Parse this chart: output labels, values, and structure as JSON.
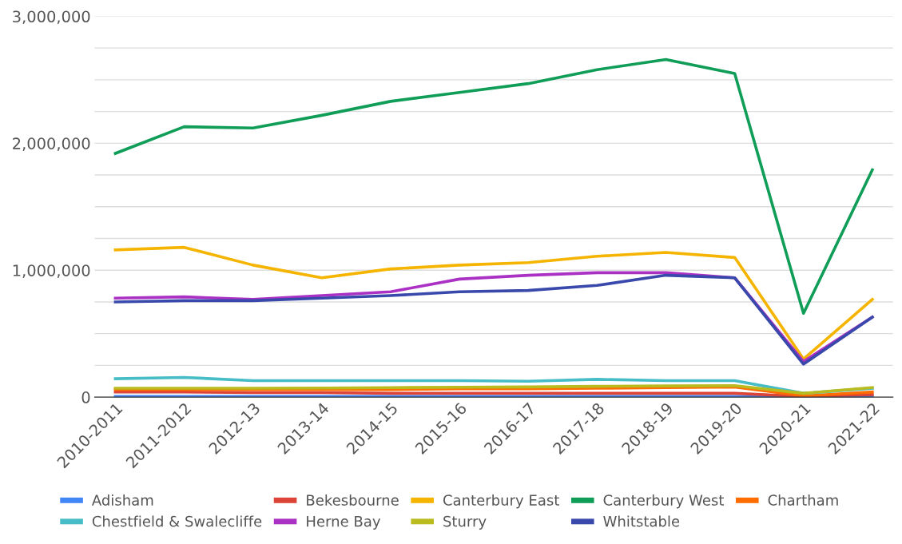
{
  "chart_data": {
    "type": "line",
    "categories": [
      "2010-2011",
      "2011-2012",
      "2012-13",
      "2013-14",
      "2014-15",
      "2015-16",
      "2016-17",
      "2017-18",
      "2018-19",
      "2019-20",
      "2020-21",
      "2021-22"
    ],
    "ylim": [
      0,
      3000000
    ],
    "yticks": [
      {
        "value": 0,
        "label": "0"
      },
      {
        "value": 250000,
        "label": null
      },
      {
        "value": 500000,
        "label": null
      },
      {
        "value": 750000,
        "label": null
      },
      {
        "value": 1000000,
        "label": "1,000,000"
      },
      {
        "value": 1250000,
        "label": null
      },
      {
        "value": 1500000,
        "label": null
      },
      {
        "value": 1750000,
        "label": null
      },
      {
        "value": 2000000,
        "label": "2,000,000"
      },
      {
        "value": 2250000,
        "label": null
      },
      {
        "value": 2500000,
        "label": null
      },
      {
        "value": 2750000,
        "label": null
      },
      {
        "value": 3000000,
        "label": "3,000,000"
      }
    ],
    "grid": "y",
    "legend": "bottom",
    "marker": "none",
    "line_style": "solid",
    "series": [
      {
        "name": "Adisham",
        "color": "#4285f4",
        "values": [
          5000,
          5000,
          5000,
          5000,
          5000,
          5000,
          5000,
          5000,
          5000,
          5000,
          1000,
          3000
        ]
      },
      {
        "name": "Bekesbourne",
        "color": "#db4437",
        "values": [
          40000,
          40000,
          35000,
          35000,
          30000,
          30000,
          30000,
          30000,
          30000,
          30000,
          5000,
          20000
        ]
      },
      {
        "name": "Canterbury East",
        "color": "#f4b400",
        "values": [
          1160000,
          1180000,
          1040000,
          940000,
          1010000,
          1040000,
          1060000,
          1110000,
          1140000,
          1100000,
          300000,
          770000
        ]
      },
      {
        "name": "Canterbury West",
        "color": "#0f9d58",
        "values": [
          1920000,
          2130000,
          2120000,
          2220000,
          2330000,
          2400000,
          2470000,
          2580000,
          2660000,
          2550000,
          660000,
          1790000
        ]
      },
      {
        "name": "Chartham",
        "color": "#ff6d01",
        "values": [
          60000,
          60000,
          60000,
          60000,
          60000,
          65000,
          65000,
          70000,
          75000,
          80000,
          10000,
          40000
        ]
      },
      {
        "name": "Chestfield & Swalecliffe",
        "color": "#46bdc6",
        "values": [
          145000,
          155000,
          130000,
          130000,
          130000,
          130000,
          125000,
          140000,
          130000,
          130000,
          30000,
          70000
        ]
      },
      {
        "name": "Herne Bay",
        "color": "#ab30c4",
        "values": [
          780000,
          790000,
          770000,
          800000,
          830000,
          930000,
          960000,
          980000,
          980000,
          940000,
          280000,
          630000
        ]
      },
      {
        "name": "Sturry",
        "color": "#b9bb1e",
        "values": [
          70000,
          70000,
          70000,
          72000,
          75000,
          78000,
          80000,
          85000,
          88000,
          90000,
          30000,
          75000
        ]
      },
      {
        "name": "Whitstable",
        "color": "#3949ab",
        "values": [
          750000,
          760000,
          760000,
          780000,
          800000,
          830000,
          840000,
          880000,
          960000,
          940000,
          260000,
          630000
        ]
      }
    ]
  }
}
